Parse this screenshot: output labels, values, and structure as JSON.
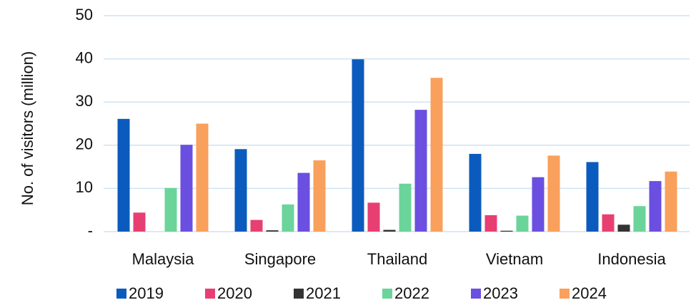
{
  "chart_data": {
    "type": "bar",
    "y_label": "No. of visitors (million)",
    "categories": [
      "Malaysia",
      "Singapore",
      "Thailand",
      "Vietnam",
      "Indonesia"
    ],
    "series": [
      {
        "name": "2019",
        "color": "#0a5bbd",
        "values": [
          26.1,
          19.1,
          39.9,
          18.0,
          16.1
        ]
      },
      {
        "name": "2020",
        "color": "#e83f72",
        "values": [
          4.4,
          2.7,
          6.7,
          3.8,
          4.0
        ]
      },
      {
        "name": "2021",
        "color": "#333333",
        "values": [
          0,
          0.3,
          0.4,
          0.2,
          1.6
        ]
      },
      {
        "name": "2022",
        "color": "#6bd49a",
        "values": [
          10.1,
          6.3,
          11.1,
          3.7,
          5.9
        ]
      },
      {
        "name": "2023",
        "color": "#6a4fe0",
        "values": [
          20.1,
          13.6,
          28.2,
          12.6,
          11.7
        ]
      },
      {
        "name": "2024",
        "color": "#f9a05c",
        "values": [
          25.0,
          16.5,
          35.6,
          17.6,
          13.9
        ]
      }
    ],
    "ylim": [
      0,
      50
    ],
    "yticks": [
      {
        "value": 0,
        "label": "-"
      },
      10,
      20,
      30,
      40,
      50
    ],
    "grid": true,
    "legend": "bottom"
  }
}
